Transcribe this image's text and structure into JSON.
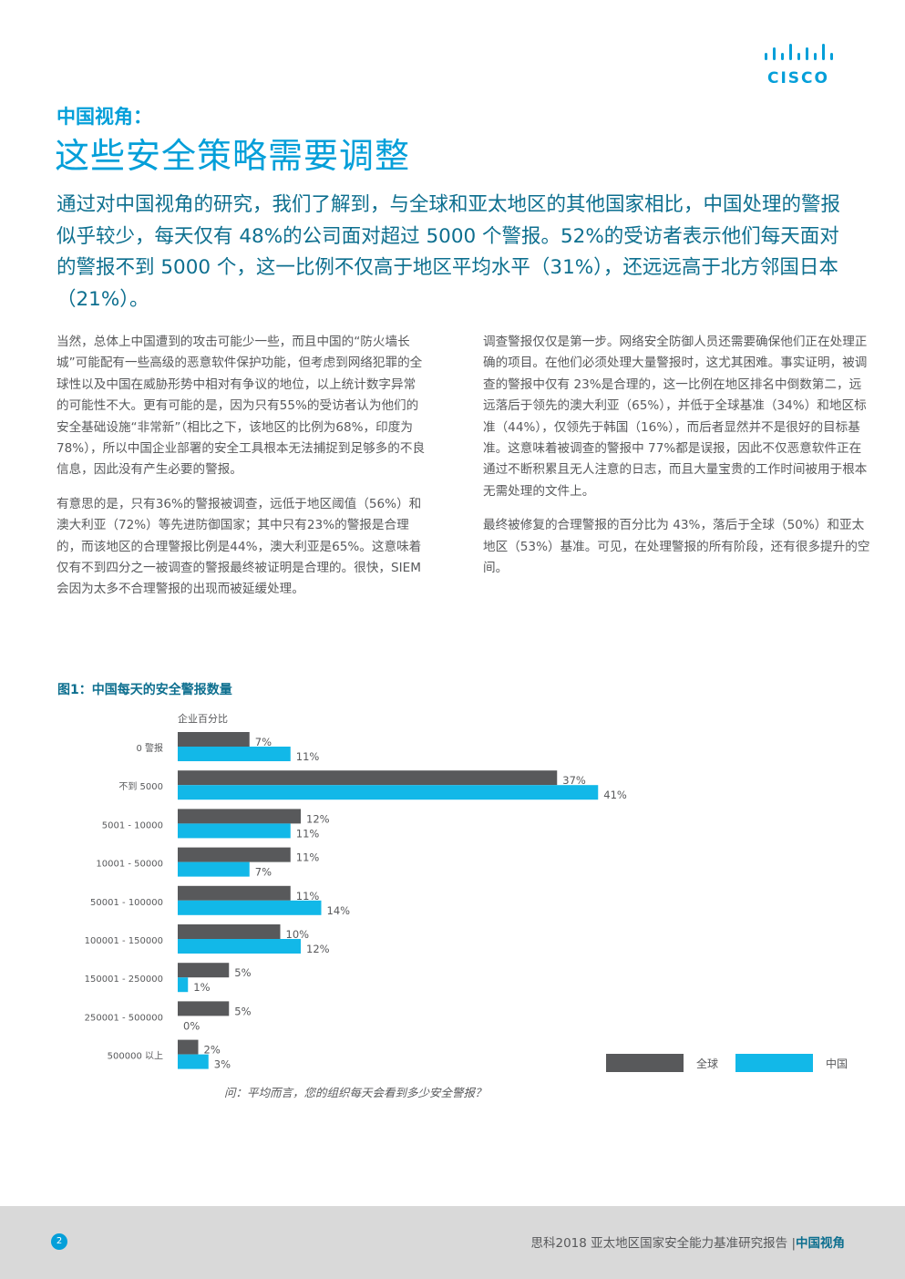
{
  "brand": {
    "logo_text": "CISCO",
    "accent_color": "#049fd9",
    "dark_accent": "#0d6f8f"
  },
  "header": {
    "kicker": "中国视角：",
    "title": "这些安全策略需要调整"
  },
  "lead": "通过对中国视角的研究，我们了解到，与全球和亚太地区的其他国家相比，中国处理的警报似乎较少，每天仅有 48%的公司面对超过 5000 个警报。52%的受访者表示他们每天面对的警报不到 5000 个，这一比例不仅高于地区平均水平（31%），还远远高于北方邻国日本（21%）。",
  "body": {
    "left": [
      "当然，总体上中国遭到的攻击可能少一些，而且中国的“防火墙长城”可能配有一些高级的恶意软件保护功能，但考虑到网络犯罪的全球性以及中国在威胁形势中相对有争议的地位，以上统计数字异常的可能性不大。更有可能的是，因为只有55%的受访者认为他们的安全基础设施“非常新”（相比之下，该地区的比例为68%，印度为78%），所以中国企业部署的安全工具根本无法捕捉到足够多的不良信息，因此没有产生必要的警报。",
      "有意思的是，只有36%的警报被调查，远低于地区阈值（56%）和澳大利亚（72%）等先进防御国家；其中只有23%的警报是合理的，而该地区的合理警报比例是44%，澳大利亚是65%。这意味着仅有不到四分之一被调查的警报最终被证明是合理的。很快，SIEM 会因为太多不合理警报的出现而被延缓处理。"
    ],
    "right": [
      "调查警报仅仅是第一步。网络安全防御人员还需要确保他们正在处理正确的项目。在他们必须处理大量警报时，这尤其困难。事实证明，被调查的警报中仅有 23%是合理的，这一比例在地区排名中倒数第二，远远落后于领先的澳大利亚（65%），并低于全球基准（34%）和地区标准（44%），仅领先于韩国（16%），而后者显然并不是很好的目标基准。这意味着被调查的警报中 77%都是误报，因此不仅恶意软件正在通过不断积累且无人注意的日志，而且大量宝贵的工作时间被用于根本无需处理的文件上。",
      "最终被修复的合理警报的百分比为 43%，落后于全球（50%）和亚太地区（53%）基准。可见，在处理警报的所有阶段，还有很多提升的空间。"
    ]
  },
  "figure": {
    "title": "图1：中国每天的安全警报数量",
    "question": "问：平均而言，您的组织每天会看到多少安全警报？"
  },
  "chart_data": {
    "type": "bar",
    "orientation": "horizontal",
    "title": "图1：中国每天的安全警报数量",
    "ylabel": "企业百分比",
    "categories": [
      "0 警报",
      "不到 5000",
      "5001 - 10000",
      "10001 - 50000",
      "50001 - 100000",
      "100001 - 150000",
      "150001 - 250000",
      "250001 - 500000",
      "500000 以上"
    ],
    "series": [
      {
        "name": "全球",
        "color": "#58595b",
        "values": [
          7,
          37,
          12,
          11,
          11,
          10,
          5,
          5,
          2
        ],
        "labels": [
          "7%",
          "37%",
          "12%",
          "11%",
          "11%",
          "10%",
          "5%",
          "5%",
          "2%"
        ]
      },
      {
        "name": "中国",
        "color": "#12b8e8",
        "values": [
          11,
          41,
          11,
          7,
          14,
          12,
          1,
          0,
          3
        ],
        "labels": [
          "11%",
          "41%",
          "11%",
          "7%",
          "14%",
          "12%",
          "1%",
          "0%",
          "3%"
        ]
      }
    ],
    "xlim": [
      0,
      45
    ],
    "legend": "bottom-right"
  },
  "footer": {
    "page_number": "2",
    "report": "思科2018 亚太地区国家安全能力基准研究报告 |",
    "section": "中国视角"
  }
}
